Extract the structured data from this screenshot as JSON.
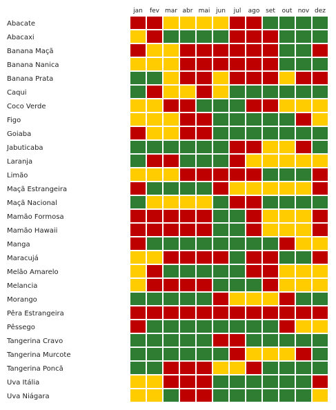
{
  "chart_data": {
    "type": "heatmap",
    "months": [
      "jan",
      "fev",
      "mar",
      "abr",
      "mai",
      "jun",
      "jul",
      "ago",
      "set",
      "out",
      "nov",
      "dez"
    ],
    "fruits": [
      "Abacate",
      "Abacaxi",
      "Banana Maçã",
      "Banana Nanica",
      "Banana Prata",
      "Caqui",
      "Coco Verde",
      "Figo",
      "Goiaba",
      "Jabuticaba",
      "Laranja",
      "Limão",
      "Maçã Estrangeira",
      "Maçã Nacional",
      "Mamão Formosa",
      "Mamão Hawaii",
      "Manga",
      "Maracujá",
      "Melão Amarelo",
      "Melancia",
      "Morango",
      "Pêra Estrangeira",
      "Pêssego",
      "Tangerina Cravo",
      "Tangerina Murcote",
      "Tangerina Poncã",
      "Uva Itália",
      "Uva Niágara"
    ],
    "levels": {
      "g": "#2e7d32",
      "y": "#ffcc00",
      "r": "#bf0000"
    },
    "rows": [
      [
        "r",
        "r",
        "y",
        "y",
        "y",
        "y",
        "r",
        "r",
        "g",
        "g",
        "g",
        "g"
      ],
      [
        "y",
        "r",
        "g",
        "g",
        "g",
        "g",
        "r",
        "r",
        "r",
        "g",
        "g",
        "g"
      ],
      [
        "r",
        "y",
        "y",
        "r",
        "r",
        "r",
        "r",
        "r",
        "r",
        "g",
        "g",
        "r"
      ],
      [
        "y",
        "y",
        "y",
        "r",
        "r",
        "r",
        "r",
        "r",
        "r",
        "g",
        "g",
        "g"
      ],
      [
        "g",
        "g",
        "y",
        "r",
        "r",
        "y",
        "r",
        "r",
        "r",
        "y",
        "r",
        "r"
      ],
      [
        "g",
        "r",
        "y",
        "y",
        "r",
        "y",
        "g",
        "g",
        "g",
        "g",
        "g",
        "g"
      ],
      [
        "y",
        "y",
        "r",
        "r",
        "g",
        "g",
        "g",
        "r",
        "r",
        "y",
        "y",
        "y"
      ],
      [
        "y",
        "y",
        "y",
        "r",
        "r",
        "g",
        "g",
        "g",
        "g",
        "g",
        "r",
        "y"
      ],
      [
        "r",
        "y",
        "y",
        "r",
        "r",
        "g",
        "g",
        "g",
        "g",
        "g",
        "g",
        "g"
      ],
      [
        "g",
        "g",
        "g",
        "g",
        "g",
        "g",
        "r",
        "r",
        "y",
        "y",
        "r",
        "g"
      ],
      [
        "g",
        "r",
        "r",
        "g",
        "g",
        "g",
        "r",
        "y",
        "y",
        "y",
        "y",
        "y"
      ],
      [
        "y",
        "y",
        "y",
        "r",
        "r",
        "r",
        "r",
        "r",
        "g",
        "g",
        "g",
        "r"
      ],
      [
        "r",
        "g",
        "g",
        "g",
        "g",
        "r",
        "y",
        "y",
        "y",
        "y",
        "y",
        "r"
      ],
      [
        "g",
        "y",
        "y",
        "y",
        "y",
        "g",
        "r",
        "r",
        "g",
        "g",
        "g",
        "g"
      ],
      [
        "r",
        "r",
        "r",
        "r",
        "r",
        "g",
        "g",
        "r",
        "y",
        "y",
        "y",
        "r"
      ],
      [
        "r",
        "r",
        "r",
        "r",
        "r",
        "g",
        "g",
        "r",
        "y",
        "y",
        "y",
        "r"
      ],
      [
        "r",
        "g",
        "g",
        "g",
        "g",
        "g",
        "g",
        "g",
        "g",
        "r",
        "y",
        "y"
      ],
      [
        "y",
        "y",
        "r",
        "r",
        "r",
        "r",
        "g",
        "r",
        "r",
        "g",
        "g",
        "r"
      ],
      [
        "y",
        "r",
        "g",
        "g",
        "g",
        "g",
        "g",
        "r",
        "r",
        "y",
        "y",
        "y"
      ],
      [
        "y",
        "r",
        "r",
        "r",
        "r",
        "g",
        "g",
        "g",
        "r",
        "y",
        "y",
        "y"
      ],
      [
        "g",
        "g",
        "g",
        "g",
        "g",
        "r",
        "y",
        "y",
        "y",
        "r",
        "g",
        "g"
      ],
      [
        "r",
        "r",
        "r",
        "r",
        "r",
        "r",
        "r",
        "r",
        "r",
        "r",
        "r",
        "r"
      ],
      [
        "r",
        "g",
        "g",
        "g",
        "g",
        "g",
        "g",
        "g",
        "g",
        "r",
        "y",
        "y"
      ],
      [
        "g",
        "g",
        "g",
        "g",
        "g",
        "r",
        "r",
        "g",
        "g",
        "g",
        "g",
        "g"
      ],
      [
        "g",
        "g",
        "g",
        "g",
        "g",
        "g",
        "r",
        "y",
        "y",
        "y",
        "r",
        "g"
      ],
      [
        "g",
        "g",
        "r",
        "r",
        "r",
        "y",
        "y",
        "r",
        "g",
        "g",
        "g",
        "g"
      ],
      [
        "y",
        "y",
        "r",
        "r",
        "r",
        "g",
        "g",
        "g",
        "g",
        "g",
        "g",
        "r"
      ],
      [
        "y",
        "y",
        "g",
        "r",
        "r",
        "g",
        "g",
        "g",
        "g",
        "g",
        "g",
        "y"
      ]
    ]
  }
}
